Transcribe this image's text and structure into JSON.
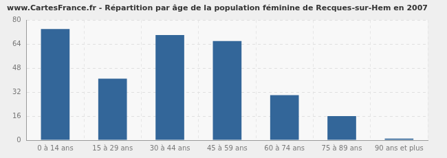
{
  "chart_data": {
    "type": "bar",
    "title": "www.CartesFrance.fr - Répartition par âge de la population féminine de Recques-sur-Hem en 2007",
    "categories": [
      "0 à 14 ans",
      "15 à 29 ans",
      "30 à 44 ans",
      "45 à 59 ans",
      "60 à 74 ans",
      "75 à 89 ans",
      "90 ans et plus"
    ],
    "values": [
      74,
      41,
      70,
      66,
      30,
      16,
      1
    ],
    "color": "#336699",
    "ylim": [
      0,
      80
    ],
    "yticks": [
      0,
      16,
      32,
      48,
      64,
      80
    ],
    "grid": true
  }
}
